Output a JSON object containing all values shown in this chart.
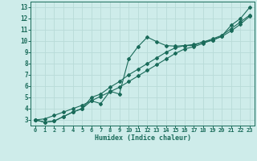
{
  "xlabel": "Humidex (Indice chaleur)",
  "bg_color": "#ceecea",
  "grid_color": "#b8dbd8",
  "line_color": "#1a6b5a",
  "x_data": [
    0,
    1,
    2,
    3,
    4,
    5,
    6,
    7,
    8,
    9,
    10,
    11,
    12,
    13,
    14,
    15,
    16,
    17,
    18,
    19,
    20,
    21,
    22,
    23
  ],
  "y_jagged": [
    3.0,
    2.8,
    2.9,
    3.3,
    3.7,
    4.0,
    4.7,
    4.45,
    5.55,
    5.3,
    8.4,
    9.5,
    10.35,
    9.95,
    9.6,
    9.55,
    9.6,
    9.6,
    9.95,
    10.05,
    10.45,
    11.4,
    12.0,
    13.0
  ],
  "y_mid": [
    3.0,
    2.8,
    2.9,
    3.3,
    3.7,
    4.0,
    5.0,
    5.3,
    5.9,
    6.4,
    7.0,
    7.5,
    8.0,
    8.5,
    9.0,
    9.4,
    9.6,
    9.7,
    9.9,
    10.2,
    10.5,
    11.1,
    11.7,
    12.3
  ],
  "y_linear": [
    3.0,
    3.1,
    3.4,
    3.7,
    4.0,
    4.3,
    4.7,
    5.1,
    5.5,
    5.9,
    6.4,
    6.9,
    7.4,
    7.9,
    8.4,
    8.9,
    9.3,
    9.5,
    9.8,
    10.1,
    10.4,
    10.9,
    11.5,
    12.2
  ],
  "xlim": [
    -0.5,
    23.5
  ],
  "ylim": [
    2.5,
    13.5
  ],
  "yticks": [
    3,
    4,
    5,
    6,
    7,
    8,
    9,
    10,
    11,
    12,
    13
  ],
  "xticks": [
    0,
    1,
    2,
    3,
    4,
    5,
    6,
    7,
    8,
    9,
    10,
    11,
    12,
    13,
    14,
    15,
    16,
    17,
    18,
    19,
    20,
    21,
    22,
    23
  ]
}
